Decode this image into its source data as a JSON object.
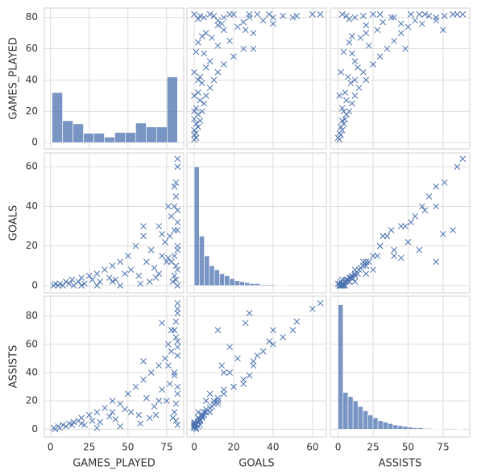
{
  "chart_data": {
    "type": "pairplot",
    "color": "#4c72b0",
    "marker": "x",
    "grid": true,
    "columns": [
      {
        "name": "GAMES_PLAYED",
        "lim": [
          -4,
          86
        ],
        "xticks": [
          0,
          25,
          50,
          75
        ],
        "yticks": [
          0,
          20,
          40,
          60,
          80
        ],
        "bins": [
          1,
          7.75,
          14.5,
          21.25,
          28,
          34.75,
          41.5,
          48.25,
          55,
          61.75,
          68.5,
          75.25,
          82
        ],
        "counts": [
          32,
          14,
          12,
          6,
          6,
          3.5,
          6.5,
          6.5,
          12.5,
          10,
          10,
          42
        ]
      },
      {
        "name": "GOALS",
        "lim": [
          -3.7,
          67
        ],
        "xticks": [
          0,
          20,
          40,
          60
        ],
        "yticks": [
          0,
          20,
          40,
          60
        ],
        "bins": [
          0,
          2.56,
          5.12,
          7.68,
          10.24,
          12.8,
          15.36,
          17.92,
          20.48,
          23.04,
          25.6,
          28.16,
          30.72,
          33.28,
          35.84,
          38.4,
          40.96,
          43.52,
          46.08,
          48.64,
          51.2,
          53.76,
          56.32,
          58.88,
          61.44,
          64
        ],
        "counts": [
          60,
          25,
          15,
          10,
          8,
          6,
          5,
          3.5,
          2.5,
          2,
          1.5,
          1,
          1,
          0.5,
          0.5,
          0.5,
          0.3,
          0.3,
          0,
          0,
          0,
          0,
          0,
          0,
          0.2
        ]
      },
      {
        "name": "ASSISTS",
        "lim": [
          -5.5,
          94
        ],
        "xticks": [
          0,
          25,
          50,
          75
        ],
        "yticks": [
          0,
          20,
          40,
          60,
          80
        ],
        "bins": [
          0,
          3.56,
          7.12,
          10.68,
          14.24,
          17.8,
          21.36,
          24.92,
          28.48,
          32.04,
          35.6,
          39.16,
          42.72,
          46.28,
          49.84,
          53.4,
          56.96,
          60.52,
          64.08,
          67.64,
          71.2,
          74.76,
          78.32,
          81.88,
          85.44,
          89
        ],
        "counts": [
          88,
          26,
          23,
          20,
          16,
          13,
          10,
          8,
          6,
          5,
          4,
          3,
          2.5,
          2,
          1.5,
          1,
          1,
          0.5,
          0.5,
          0.3,
          0.3,
          0,
          0,
          0,
          0.2
        ]
      }
    ],
    "rows": [
      [
        2,
        0,
        1
      ],
      [
        3,
        1,
        0
      ],
      [
        5,
        0,
        2
      ],
      [
        6,
        1,
        1
      ],
      [
        8,
        0,
        3
      ],
      [
        10,
        2,
        2
      ],
      [
        12,
        1,
        4
      ],
      [
        14,
        3,
        3
      ],
      [
        15,
        0,
        5
      ],
      [
        18,
        2,
        6
      ],
      [
        20,
        4,
        8
      ],
      [
        22,
        1,
        3
      ],
      [
        25,
        5,
        10
      ],
      [
        27,
        3,
        6
      ],
      [
        30,
        6,
        12
      ],
      [
        32,
        2,
        5
      ],
      [
        35,
        8,
        15
      ],
      [
        38,
        4,
        9
      ],
      [
        40,
        10,
        20
      ],
      [
        42,
        3,
        7
      ],
      [
        45,
        12,
        18
      ],
      [
        48,
        6,
        14
      ],
      [
        50,
        15,
        25
      ],
      [
        52,
        8,
        12
      ],
      [
        55,
        20,
        30
      ],
      [
        57,
        5,
        10
      ],
      [
        60,
        25,
        35
      ],
      [
        62,
        12,
        22
      ],
      [
        65,
        18,
        40
      ],
      [
        67,
        9,
        16
      ],
      [
        70,
        30,
        45
      ],
      [
        72,
        15,
        28
      ],
      [
        74,
        22,
        50
      ],
      [
        76,
        40,
        60
      ],
      [
        78,
        35,
        55
      ],
      [
        80,
        50,
        70
      ],
      [
        80,
        28,
        38
      ],
      [
        81,
        45,
        65
      ],
      [
        82,
        60,
        85
      ],
      [
        82,
        64,
        89
      ],
      [
        82,
        20,
        30
      ],
      [
        81,
        10,
        18
      ],
      [
        80,
        5,
        12
      ],
      [
        79,
        2,
        8
      ],
      [
        82,
        32,
        52
      ],
      [
        82,
        0,
        3
      ],
      [
        81,
        3,
        6
      ],
      [
        75,
        12,
        20
      ],
      [
        68,
        4,
        10
      ],
      [
        58,
        1,
        4
      ],
      [
        45,
        0,
        2
      ],
      [
        30,
        0,
        1
      ],
      [
        82,
        8,
        25
      ],
      [
        80,
        15,
        40
      ],
      [
        77,
        25,
        32
      ],
      [
        70,
        6,
        20
      ],
      [
        64,
        2,
        8
      ],
      [
        82,
        38,
        62
      ],
      [
        81,
        52,
        76
      ],
      [
        76,
        14,
        45
      ],
      [
        82,
        18,
        58
      ],
      [
        60,
        30,
        48
      ],
      [
        80,
        40,
        70
      ],
      [
        40,
        2,
        12
      ],
      [
        20,
        0,
        4
      ],
      [
        82,
        28,
        82
      ],
      [
        78,
        12,
        70
      ],
      [
        72,
        26,
        75
      ]
    ]
  }
}
